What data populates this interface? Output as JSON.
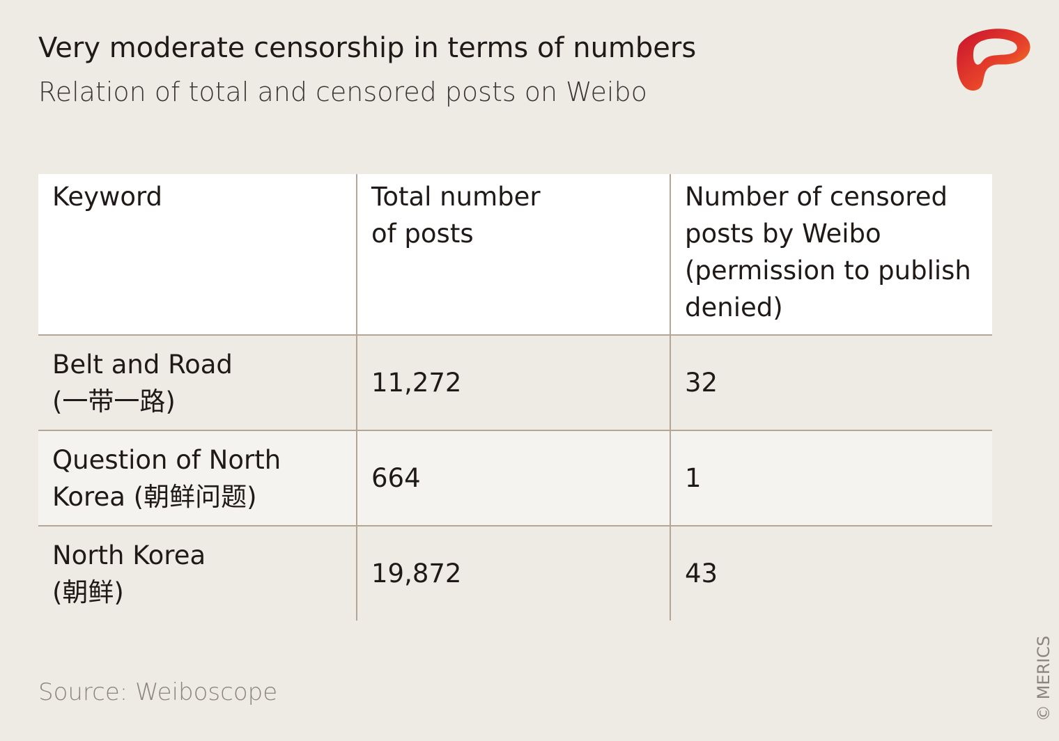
{
  "header": {
    "title": "Very moderate censorship in terms of numbers",
    "subtitle": "Relation of total and censored posts on Weibo"
  },
  "table": {
    "columns": [
      "Keyword",
      "Total number\nof posts",
      "Number of censored\nposts by Weibo\n(permission to publish\ndenied)"
    ],
    "rows": [
      [
        "Belt and Road\n(一带一路)",
        "11,272",
        "32"
      ],
      [
        "Question of North\nKorea (朝鲜问题)",
        "664",
        "1"
      ],
      [
        "North Korea\n(朝鲜)",
        "19,872",
        "43"
      ]
    ]
  },
  "source": "Source: Weiboscope",
  "credit": "© MERICS"
}
